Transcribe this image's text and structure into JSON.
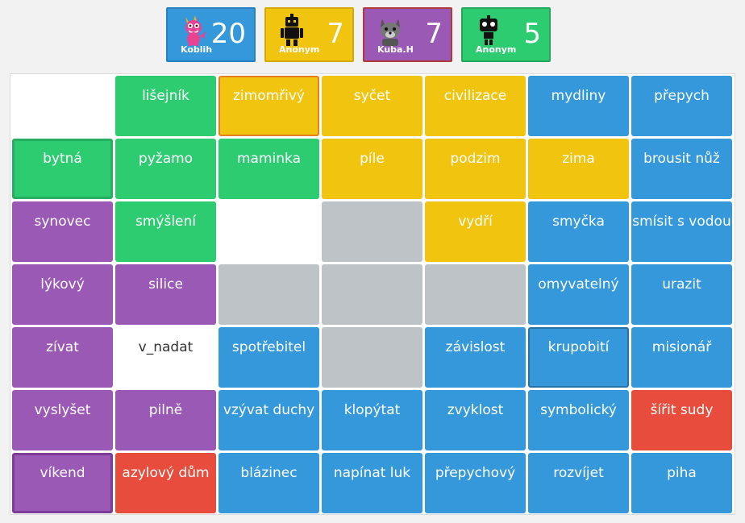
{
  "players": [
    {
      "name": "Koblih",
      "score": "20",
      "avatar": "pink-dragon-icon"
    },
    {
      "name": "Anonym",
      "score": "7",
      "avatar": "black-robot-icon"
    },
    {
      "name": "Kuba.H",
      "score": "7",
      "avatar": "gray-wolf-icon"
    },
    {
      "name": "Anonym",
      "score": "5",
      "avatar": "black-robot-head-icon"
    }
  ],
  "board": {
    "rows": [
      [
        {
          "text": "",
          "color": "empty"
        },
        {
          "text": "lišejník",
          "color": "green"
        },
        {
          "text": "zimomřivý",
          "color": "yellow",
          "selected": true
        },
        {
          "text": "syčet",
          "color": "yellow"
        },
        {
          "text": "civilizace",
          "color": "yellow"
        },
        {
          "text": "mydliny",
          "color": "blue"
        },
        {
          "text": "přepych",
          "color": "blue"
        }
      ],
      [
        {
          "text": "bytná",
          "color": "green",
          "selected": true
        },
        {
          "text": "pyžamo",
          "color": "green"
        },
        {
          "text": "maminka",
          "color": "green"
        },
        {
          "text": "píle",
          "color": "yellow"
        },
        {
          "text": "podzim",
          "color": "yellow"
        },
        {
          "text": "zima",
          "color": "yellow"
        },
        {
          "text": "brousit nůž",
          "color": "blue"
        }
      ],
      [
        {
          "text": "synovec",
          "color": "purple"
        },
        {
          "text": "smýšlení",
          "color": "green"
        },
        {
          "text": "",
          "color": "empty"
        },
        {
          "text": "",
          "color": "gray"
        },
        {
          "text": "vydří",
          "color": "yellow"
        },
        {
          "text": "smyčka",
          "color": "blue"
        },
        {
          "text": "smísit s vodou",
          "color": "blue"
        }
      ],
      [
        {
          "text": "lýkový",
          "color": "purple"
        },
        {
          "text": "silice",
          "color": "purple"
        },
        {
          "text": "",
          "color": "gray"
        },
        {
          "text": "",
          "color": "gray"
        },
        {
          "text": "",
          "color": "gray"
        },
        {
          "text": "omyvatelný",
          "color": "blue"
        },
        {
          "text": "urazit",
          "color": "blue"
        }
      ],
      [
        {
          "text": "zívat",
          "color": "purple"
        },
        {
          "text": "v_nadat",
          "color": "text"
        },
        {
          "text": "spotřebitel",
          "color": "blue"
        },
        {
          "text": "",
          "color": "gray"
        },
        {
          "text": "závislost",
          "color": "blue"
        },
        {
          "text": "krupobití",
          "color": "blue",
          "selected": true
        },
        {
          "text": "misionář",
          "color": "blue"
        }
      ],
      [
        {
          "text": "vyslyšet",
          "color": "purple"
        },
        {
          "text": "pilně",
          "color": "purple"
        },
        {
          "text": "vzývat duchy",
          "color": "blue"
        },
        {
          "text": "klopýtat",
          "color": "blue"
        },
        {
          "text": "zvyklost",
          "color": "blue"
        },
        {
          "text": "symbolický",
          "color": "blue"
        },
        {
          "text": "šířit sudy",
          "color": "red"
        }
      ],
      [
        {
          "text": "víkend",
          "color": "purple",
          "selected": true
        },
        {
          "text": "azylový dům",
          "color": "red"
        },
        {
          "text": "blázinec",
          "color": "blue"
        },
        {
          "text": "napínat luk",
          "color": "blue"
        },
        {
          "text": "přepychový",
          "color": "blue"
        },
        {
          "text": "rozvíjet",
          "color": "blue"
        },
        {
          "text": "piha",
          "color": "blue"
        }
      ]
    ]
  }
}
